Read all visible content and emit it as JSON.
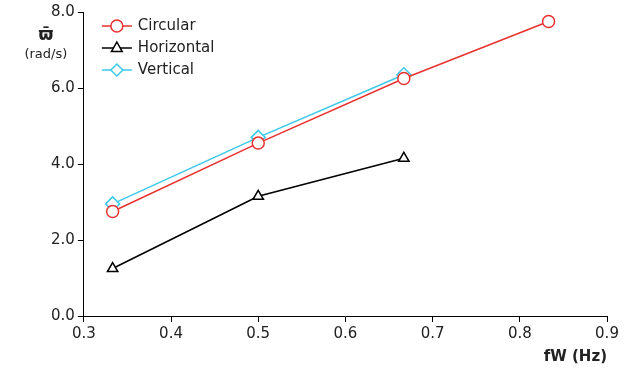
{
  "chart_data": {
    "type": "line",
    "x_label": "fW (Hz)",
    "y_label": "ϖ̄ (rad/s)",
    "xlim": [
      0.3,
      0.9
    ],
    "xticks": [
      0.3,
      0.4,
      0.5,
      0.6,
      0.7,
      0.8,
      0.9
    ],
    "ylim": [
      0,
      8
    ],
    "yticks": [
      {
        "value": 0,
        "label": "0.0"
      },
      {
        "value": 2,
        "label": "2.0"
      },
      {
        "value": 4,
        "label": "4.0"
      },
      {
        "value": 6,
        "label": "6.0"
      },
      {
        "value": 8,
        "label": "8.0"
      }
    ],
    "grid": false,
    "legend": "upper left",
    "series": [
      {
        "name": "Circular",
        "color": "#e8312f",
        "marker": "circle",
        "line_style": "solid",
        "x": [
          0.333,
          0.5,
          0.667,
          0.833
        ],
        "values": [
          2.75,
          4.55,
          6.25,
          7.75
        ]
      },
      {
        "name": "Horizontal",
        "color": "#000000",
        "marker": "triangle",
        "line_style": "solid",
        "x": [
          0.333,
          0.5,
          0.667
        ],
        "values": [
          1.25,
          3.15,
          4.15
        ]
      },
      {
        "name": "Vertical",
        "color": "#3cc8e8",
        "marker": "diamond",
        "line_style": "solid",
        "x": [
          0.333,
          0.5,
          0.667
        ],
        "values": [
          2.95,
          4.7,
          6.35
        ]
      }
    ]
  }
}
